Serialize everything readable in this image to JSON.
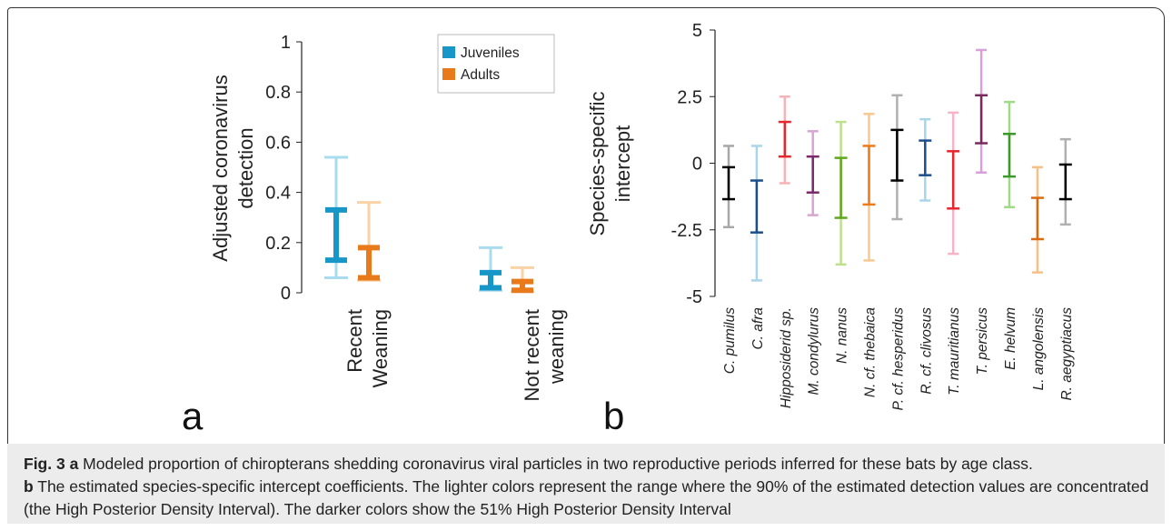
{
  "figure_number": "Fig. 3",
  "caption": {
    "label": "Fig. 3",
    "part_a_letter": "a",
    "part_a_text": " Modeled proportion of chiropterans shedding coronavirus viral particles in two reproductive periods inferred for these bats by age class.",
    "part_b_letter": "b",
    "part_b_text": " The estimated species-specific intercept coefficients. The lighter colors represent the range where the 90% of the estimated detection values are concentrated (the High Posterior Density Interval). The darker colors show the 51% High Posterior Density Interval"
  },
  "chart_data": [
    {
      "type": "errorbar",
      "panel_letter": "a",
      "ylabel_lines": [
        "Adjusted coronavirus",
        "detection"
      ],
      "ylim": [
        0,
        1
      ],
      "yticks": [
        0,
        0.2,
        0.4,
        0.6,
        0.8,
        1
      ],
      "ytick_labels": [
        "0",
        "0.2",
        "0.4",
        "0.6",
        "0.8",
        "1"
      ],
      "groups": [
        {
          "label_lines": [
            "Recent",
            "Weaning"
          ]
        },
        {
          "label_lines": [
            "Not recent",
            "weaning"
          ]
        }
      ],
      "legend": {
        "position": "top-right",
        "entries": [
          "Juveniles",
          "Adults"
        ]
      },
      "series": [
        {
          "name": "Juveniles",
          "dark_color": "#1797c7",
          "light_color": "#a9dcef",
          "values": [
            {
              "hpd90": [
                0.06,
                0.54
              ],
              "hpd51": [
                0.13,
                0.33
              ]
            },
            {
              "hpd90": [
                0.01,
                0.18
              ],
              "hpd51": [
                0.02,
                0.08
              ]
            }
          ]
        },
        {
          "name": "Adults",
          "dark_color": "#e97a1b",
          "light_color": "#f9d3a6",
          "values": [
            {
              "hpd90": [
                0.05,
                0.36
              ],
              "hpd51": [
                0.06,
                0.18
              ]
            },
            {
              "hpd90": [
                0.005,
                0.1
              ],
              "hpd51": [
                0.01,
                0.045
              ]
            }
          ]
        }
      ]
    },
    {
      "type": "errorbar",
      "panel_letter": "b",
      "ylabel_lines": [
        "Species-specific",
        "intercept"
      ],
      "ylim": [
        -5,
        5
      ],
      "yticks": [
        -5,
        -2.5,
        0,
        2.5,
        5
      ],
      "ytick_labels": [
        "-5",
        "-2.5",
        "0",
        "2.5",
        "5"
      ],
      "categories": [
        "C. pumilus",
        "C. afra",
        "Hipposiderid sp.",
        "M. condylurus",
        "N. nanus",
        "N. cf. thebaica",
        "P. cf. hesperidus",
        "R. cf. clivosus",
        "T. mauritianus",
        "T. persicus",
        "E. helvum",
        "L. angolensis",
        "R. aegyptiacus"
      ],
      "series": [
        {
          "name": "C. pumilus",
          "dark_color": "#000000",
          "light_color": "#a8a8a8",
          "hpd90": [
            -2.4,
            0.65
          ],
          "hpd51": [
            -1.35,
            -0.15
          ]
        },
        {
          "name": "C. afra",
          "dark_color": "#1a4f8c",
          "light_color": "#a9d5ea",
          "hpd90": [
            -4.4,
            0.65
          ],
          "hpd51": [
            -2.6,
            -0.65
          ]
        },
        {
          "name": "Hipposiderid sp.",
          "dark_color": "#e8262e",
          "light_color": "#f7b3b8",
          "hpd90": [
            -0.75,
            2.5
          ],
          "hpd51": [
            0.25,
            1.55
          ]
        },
        {
          "name": "M. condylurus",
          "dark_color": "#7a2a6a",
          "light_color": "#d8a5d0",
          "hpd90": [
            -1.95,
            1.2
          ],
          "hpd51": [
            -1.1,
            0.25
          ]
        },
        {
          "name": "N. nanus",
          "dark_color": "#5fa81c",
          "light_color": "#bde08e",
          "hpd90": [
            -3.8,
            1.55
          ],
          "hpd51": [
            -2.05,
            0.2
          ]
        },
        {
          "name": "N. cf. thebaica",
          "dark_color": "#ef7a19",
          "light_color": "#f9c890",
          "hpd90": [
            -3.65,
            1.85
          ],
          "hpd51": [
            -1.55,
            0.65
          ]
        },
        {
          "name": "P. cf. hesperidus",
          "dark_color": "#000000",
          "light_color": "#b0b0b0",
          "hpd90": [
            -2.1,
            2.55
          ],
          "hpd51": [
            -0.65,
            1.25
          ]
        },
        {
          "name": "R. cf. clivosus",
          "dark_color": "#1a4f8c",
          "light_color": "#a9d5ea",
          "hpd90": [
            -1.4,
            1.65
          ],
          "hpd51": [
            -0.45,
            0.85
          ]
        },
        {
          "name": "T. mauritianus",
          "dark_color": "#e8262e",
          "light_color": "#f7b3c8",
          "hpd90": [
            -3.4,
            1.9
          ],
          "hpd51": [
            -1.7,
            0.45
          ]
        },
        {
          "name": "T. persicus",
          "dark_color": "#7a2a5a",
          "light_color": "#d8a0d8",
          "hpd90": [
            -0.35,
            4.25
          ],
          "hpd51": [
            0.75,
            2.55
          ]
        },
        {
          "name": "E. helvum",
          "dark_color": "#3a9a2a",
          "light_color": "#9fda86",
          "hpd90": [
            -1.65,
            2.3
          ],
          "hpd51": [
            -0.5,
            1.1
          ]
        },
        {
          "name": "L. angolensis",
          "dark_color": "#d96a12",
          "light_color": "#f7c089",
          "hpd90": [
            -4.1,
            -0.15
          ],
          "hpd51": [
            -2.85,
            -1.3
          ]
        },
        {
          "name": "R. aegyptiacus",
          "dark_color": "#000000",
          "light_color": "#b0b0b0",
          "hpd90": [
            -2.3,
            0.9
          ],
          "hpd51": [
            -1.35,
            -0.05
          ]
        }
      ]
    }
  ]
}
